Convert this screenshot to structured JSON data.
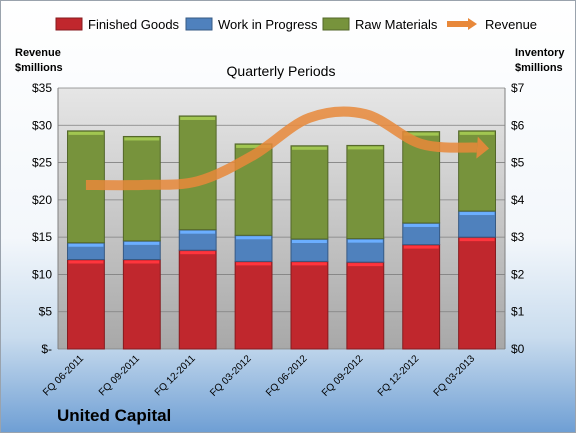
{
  "chart_data": {
    "type": "bar",
    "stacked": true,
    "subtitle": "Quarterly Periods",
    "company": "United Capital",
    "left_axis_title": [
      "Revenue",
      "$millions"
    ],
    "right_axis_title": [
      "Inventory",
      "$millions"
    ],
    "categories": [
      "FQ 06-2011",
      "FQ 09-2011",
      "FQ 12-2011",
      "FQ 03-2012",
      "FQ 06-2012",
      "FQ 09-2012",
      "FQ 12-2012",
      "FQ 03-2013"
    ],
    "left_ticks": [
      "$-",
      "$5",
      "$10",
      "$15",
      "$20",
      "$25",
      "$30",
      "$35"
    ],
    "right_ticks": [
      "$0",
      "$1",
      "$2",
      "$3",
      "$4",
      "$5",
      "$6",
      "$7"
    ],
    "left_ylim": [
      0,
      35
    ],
    "right_ylim": [
      0,
      7
    ],
    "grid": true,
    "legend_position": "top",
    "series": [
      {
        "name": "Finished Goods",
        "axis": "right",
        "color": "#c0272d",
        "values": [
          2.4,
          2.4,
          2.65,
          2.35,
          2.35,
          2.33,
          2.8,
          3.0
        ]
      },
      {
        "name": "Work in Progress",
        "axis": "right",
        "color": "#4f81bd",
        "values": [
          0.45,
          0.5,
          0.55,
          0.7,
          0.6,
          0.63,
          0.58,
          0.7
        ]
      },
      {
        "name": "Raw Materials",
        "axis": "right",
        "color": "#77933c",
        "values": [
          3.0,
          2.8,
          3.05,
          2.45,
          2.5,
          2.5,
          2.45,
          2.15
        ]
      },
      {
        "name": "Revenue",
        "axis": "left",
        "type": "line",
        "color": "#e8883a",
        "values": [
          22,
          22,
          22.5,
          26,
          31,
          31.5,
          27.5,
          27
        ]
      }
    ]
  }
}
